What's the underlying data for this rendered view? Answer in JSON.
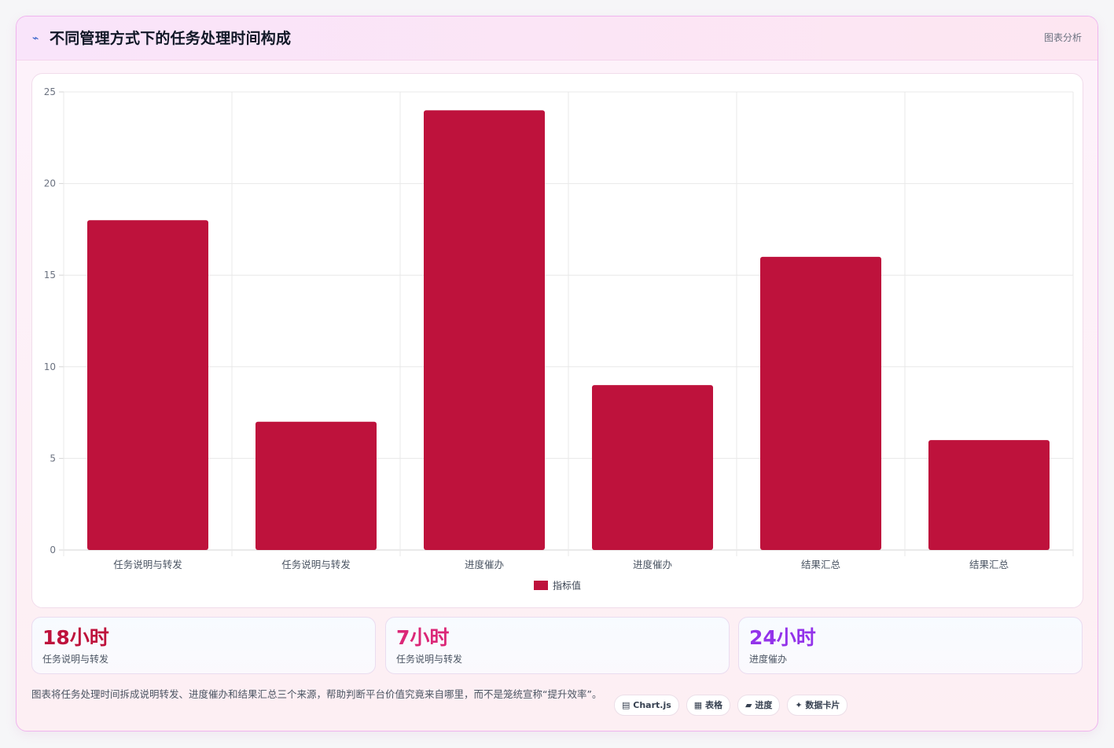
{
  "header": {
    "icon": "chart-line-icon",
    "title": "不同管理方式下的任务处理时间构成",
    "tag": "图表分析"
  },
  "chart_data": {
    "type": "bar",
    "categories": [
      "任务说明与转发",
      "任务说明与转发",
      "进度催办",
      "进度催办",
      "结果汇总",
      "结果汇总"
    ],
    "series": [
      {
        "name": "指标值",
        "values": [
          18,
          7,
          24,
          9,
          16,
          6
        ],
        "color": "#be123c"
      }
    ],
    "ylim": [
      0,
      25
    ],
    "yticks": [
      0,
      5,
      10,
      15,
      20,
      25
    ],
    "grid": true,
    "legend": "bottom-center"
  },
  "stats": [
    {
      "value": "18小时",
      "label": "任务说明与转发",
      "color": "#be123c"
    },
    {
      "value": "7小时",
      "label": "任务说明与转发",
      "color": "#db2777"
    },
    {
      "value": "24小时",
      "label": "进度催办",
      "color": "#9333ea"
    }
  ],
  "note": "图表将任务处理时间拆成说明转发、进度催办和结果汇总三个来源，帮助判断平台价值究竟来自哪里，而不是笼统宣称“提升效率”。",
  "chips": [
    {
      "icon": "table-icon",
      "glyph": "▤",
      "label": "Chart.js"
    },
    {
      "icon": "grid-icon",
      "glyph": "▦",
      "label": "表格"
    },
    {
      "icon": "progress-icon",
      "glyph": "▰",
      "label": "进度"
    },
    {
      "icon": "sparkle-icon",
      "glyph": "✦",
      "label": "数据卡片"
    }
  ]
}
